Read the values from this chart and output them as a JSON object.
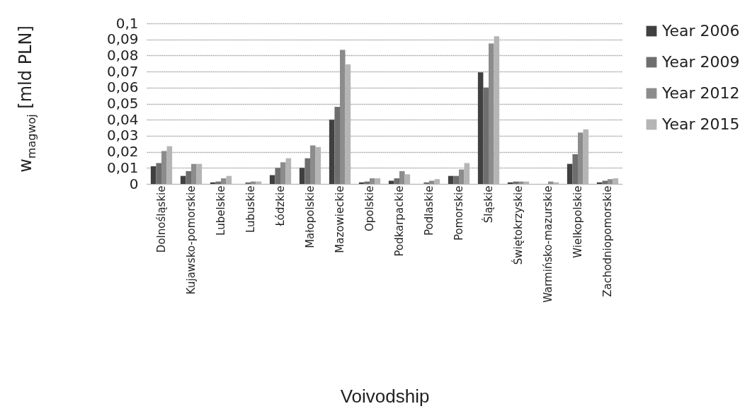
{
  "chart_data": {
    "type": "bar",
    "xlabel": "Voivodship",
    "ylabel": "w$_{magwoj}$ [mld PLN]",
    "categories": [
      "Dolnośląskie",
      "Kujawsko-pomorskie",
      "Lubelskie",
      "Lubuskie",
      "Łódzkie",
      "Małopolskie",
      "Mazowieckie",
      "Opolskie",
      "Podkarpackie",
      "Podlaskie",
      "Pomorskie",
      "Śląskie",
      "Świętokrzyskie",
      "Warmińsko-mazurskie",
      "Wielkopolskie",
      "Zachodniopomorskie"
    ],
    "series": [
      {
        "name": "Year 2006",
        "color": "#404040",
        "values": [
          0.011,
          0.005,
          0.001,
          0,
          0.0055,
          0.01,
          0.04,
          0.001,
          0.002,
          0,
          0.005,
          0.0695,
          0.001,
          0,
          0.0125,
          0.001
        ]
      },
      {
        "name": "Year 2009",
        "color": "#6e6e6e",
        "values": [
          0.013,
          0.008,
          0.0015,
          0.001,
          0.01,
          0.016,
          0.048,
          0.0015,
          0.0035,
          0.001,
          0.005,
          0.06,
          0.0015,
          0,
          0.0185,
          0.002
        ]
      },
      {
        "name": "Year 2012",
        "color": "#8c8c8c",
        "values": [
          0.0205,
          0.0125,
          0.0035,
          0.0015,
          0.0135,
          0.024,
          0.0835,
          0.0035,
          0.008,
          0.002,
          0.009,
          0.0875,
          0.0015,
          0.0015,
          0.032,
          0.003
        ]
      },
      {
        "name": "Year 2015",
        "color": "#b5b5b5",
        "values": [
          0.0235,
          0.0125,
          0.005,
          0.0015,
          0.016,
          0.023,
          0.0745,
          0.0035,
          0.006,
          0.003,
          0.013,
          0.092,
          0.0015,
          0.001,
          0.034,
          0.0035
        ]
      }
    ],
    "ylim": [
      0,
      0.1
    ],
    "yticks": [
      0,
      {
        "value": 0.01,
        "label": "0,01"
      },
      {
        "value": 0.02,
        "label": "0,02"
      },
      {
        "value": 0.03,
        "label": "0,03"
      },
      {
        "value": 0.04,
        "label": "0,04"
      },
      {
        "value": 0.05,
        "label": "0,05"
      },
      {
        "value": 0.06,
        "label": "0,06"
      },
      {
        "value": 0.07,
        "label": "0,07"
      },
      {
        "value": 0.08,
        "label": "0,08"
      },
      {
        "value": 0.09,
        "label": "0,09"
      },
      {
        "value": 0.1,
        "label": "0,1"
      }
    ],
    "grid": "y",
    "legend": "right"
  }
}
